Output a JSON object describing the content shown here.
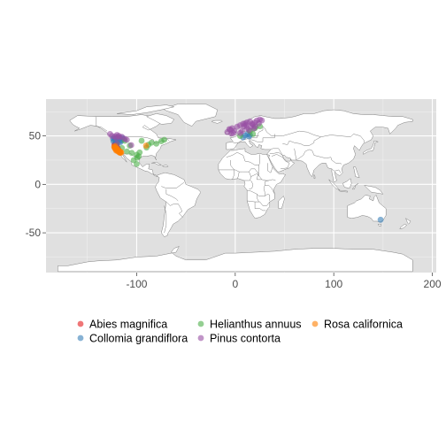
{
  "chart_data": {
    "type": "scatter",
    "title": "",
    "xlabel": "",
    "ylabel": "",
    "xlim": [
      -192,
      204
    ],
    "ylim": [
      -91,
      88
    ],
    "x_ticks": [
      -100,
      0,
      100,
      200
    ],
    "y_ticks": [
      -50,
      0,
      50
    ],
    "x_tick_labels": [
      "-100",
      "0",
      "100",
      "200"
    ],
    "y_tick_labels": [
      "-50",
      "0",
      "50"
    ],
    "grid": true,
    "background": "world-map",
    "legend_position": "bottom",
    "panel_color": "#e0e0e0",
    "grid_color": "#ffffff",
    "land_color": "#ffffff",
    "border_color": "#7f7f7f",
    "series": [
      {
        "name": "Abies magnifica",
        "color": "#e41a1c",
        "points": [
          [
            -121.5,
            41.5
          ],
          [
            -121.8,
            40.5
          ],
          [
            -122.2,
            39.8
          ],
          [
            -121.0,
            39.0
          ],
          [
            -120.5,
            38.5
          ],
          [
            -120.0,
            37.8
          ],
          [
            -119.5,
            37.2
          ],
          [
            -118.8,
            36.5
          ],
          [
            -122.5,
            41.0
          ],
          [
            -121.3,
            42.0
          ],
          [
            -120.8,
            40.8
          ],
          [
            -119.0,
            36.0
          ],
          [
            -122.0,
            38.2
          ]
        ]
      },
      {
        "name": "Collomia grandiflora",
        "color": "#377eb8",
        "points": [
          [
            -123.0,
            48.0
          ],
          [
            -122.0,
            46.5
          ],
          [
            -120.5,
            47.0
          ],
          [
            -121.5,
            45.5
          ],
          [
            -118.5,
            46.2
          ],
          [
            -117.0,
            47.5
          ],
          [
            -116.0,
            45.0
          ],
          [
            -114.5,
            48.0
          ],
          [
            -120.0,
            44.0
          ],
          [
            -123.5,
            44.5
          ],
          [
            -121.0,
            43.0
          ],
          [
            -116.5,
            43.5
          ],
          [
            -113.5,
            46.5
          ],
          [
            -119.0,
            49.0
          ],
          [
            -124.0,
            47.0
          ],
          [
            -117.5,
            44.8
          ],
          [
            10.0,
            50.5
          ],
          [
            12.5,
            52.0
          ],
          [
            8.0,
            48.5
          ],
          [
            14.0,
            49.5
          ],
          [
            15.0,
            51.0
          ],
          [
            147.5,
            -36.5
          ]
        ]
      },
      {
        "name": "Helianthus annuus",
        "color": "#4daf4a",
        "points": [
          [
            -120.0,
            40.5
          ],
          [
            -115.0,
            37.5
          ],
          [
            -110.0,
            34.0
          ],
          [
            -105.0,
            32.5
          ],
          [
            -100.0,
            30.5
          ],
          [
            -98.0,
            29.0
          ],
          [
            -103.0,
            25.0
          ],
          [
            -100.0,
            21.0
          ],
          [
            -99.5,
            27.5
          ],
          [
            -97.0,
            33.0
          ],
          [
            -90.0,
            38.0
          ],
          [
            -88.0,
            41.0
          ],
          [
            -85.0,
            43.0
          ],
          [
            -80.0,
            42.0
          ],
          [
            -75.0,
            44.5
          ],
          [
            -72.0,
            46.0
          ],
          [
            -95.0,
            45.0
          ],
          [
            -107.0,
            40.0
          ],
          [
            -112.0,
            45.0
          ],
          [
            5.0,
            50.0
          ],
          [
            15.0,
            55.0
          ],
          [
            20.0,
            58.0
          ],
          [
            25.0,
            60.0
          ],
          [
            18.0,
            52.0
          ]
        ]
      },
      {
        "name": "Pinus contorta",
        "color": "#984ea3",
        "points": [
          [
            -125.0,
            50.0
          ],
          [
            -122.0,
            49.5
          ],
          [
            -120.0,
            51.0
          ],
          [
            -118.0,
            50.0
          ],
          [
            -115.0,
            49.0
          ],
          [
            -117.5,
            48.5
          ],
          [
            -121.0,
            48.0
          ],
          [
            -112.0,
            47.0
          ],
          [
            -110.0,
            46.0
          ],
          [
            -127.0,
            52.0
          ],
          [
            -122.0,
            40.0
          ],
          [
            -120.0,
            42.0
          ],
          [
            -119.5,
            38.0
          ],
          [
            -105.5,
            40.5
          ],
          [
            -8.0,
            54.0
          ],
          [
            -5.0,
            56.5
          ],
          [
            -3.0,
            58.0
          ],
          [
            2.0,
            59.5
          ],
          [
            5.0,
            61.0
          ],
          [
            8.0,
            62.5
          ],
          [
            10.0,
            63.0
          ],
          [
            12.0,
            64.0
          ],
          [
            15.0,
            65.0
          ],
          [
            18.0,
            62.0
          ],
          [
            20.0,
            64.0
          ],
          [
            22.0,
            66.0
          ],
          [
            25.0,
            67.0
          ],
          [
            27.0,
            66.0
          ],
          [
            24.0,
            63.0
          ],
          [
            16.0,
            60.0
          ],
          [
            12.0,
            58.0
          ],
          [
            14.0,
            56.0
          ],
          [
            -1.0,
            55.0
          ],
          [
            5.0,
            53.0
          ],
          [
            -4.0,
            52.5
          ],
          [
            7.0,
            55.0
          ],
          [
            9.0,
            60.0
          ],
          [
            -6.0,
            57.0
          ],
          [
            -2.0,
            53.0
          ],
          [
            20.0,
            60.0
          ],
          [
            17.0,
            62.5
          ],
          [
            19.0,
            58.0
          ],
          [
            11.0,
            61.0
          ]
        ]
      },
      {
        "name": "Rosa californica",
        "color": "#ff7f00",
        "points": [
          [
            -122.5,
            38.0
          ],
          [
            -122.0,
            37.0
          ],
          [
            -121.5,
            36.5
          ],
          [
            -120.5,
            35.5
          ],
          [
            -119.5,
            35.0
          ],
          [
            -118.5,
            34.5
          ],
          [
            -117.5,
            34.0
          ],
          [
            -117.0,
            33.0
          ],
          [
            -116.5,
            32.5
          ],
          [
            -118.0,
            33.5
          ],
          [
            -120.0,
            36.0
          ],
          [
            -121.0,
            37.5
          ],
          [
            -119.0,
            34.0
          ],
          [
            -116.0,
            33.5
          ],
          [
            -117.2,
            32.8
          ],
          [
            -122.8,
            38.8
          ],
          [
            -118.2,
            35.2
          ],
          [
            -120.8,
            34.8
          ],
          [
            -115.7,
            32.8
          ],
          [
            -119.8,
            36.8
          ],
          [
            -121.8,
            39.5
          ],
          [
            -90.5,
            40.0
          ]
        ]
      }
    ]
  }
}
